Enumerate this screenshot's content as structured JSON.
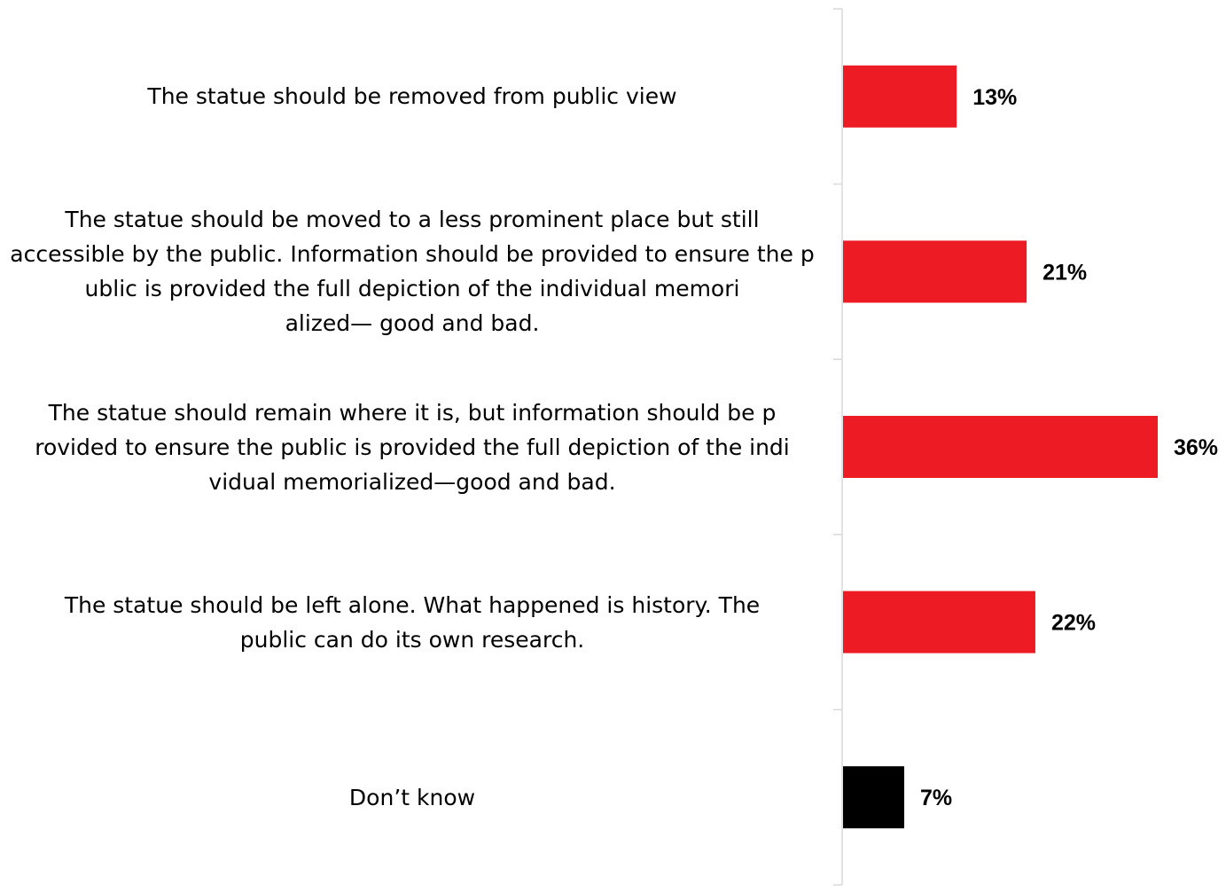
{
  "chart_data": {
    "type": "bar",
    "orientation": "horizontal",
    "categories": [
      "The statue should be removed from public view",
      "The statue should be moved to a less prominent place but still accessible by the public. Information should be provided to ensure the public is provided the full depiction of the individual memorialized— good and bad.",
      "The statue should remain where it is, but information should be provided to ensure the public is provided the full depiction of the individual memorialized—good and bad.",
      "The statue should be left alone. What happened is history. The public can do its own research.",
      "Don’t know"
    ],
    "values": [
      13,
      21,
      36,
      22,
      7
    ],
    "value_labels": [
      "13%",
      "21%",
      "36%",
      "22%",
      "7%"
    ],
    "bar_colors": [
      "#ed1c24",
      "#ed1c24",
      "#ed1c24",
      "#ed1c24",
      "#000000"
    ],
    "xlim": [
      0,
      36
    ],
    "title": "",
    "xlabel": "",
    "ylabel": "",
    "grid": false,
    "legend": "none"
  }
}
